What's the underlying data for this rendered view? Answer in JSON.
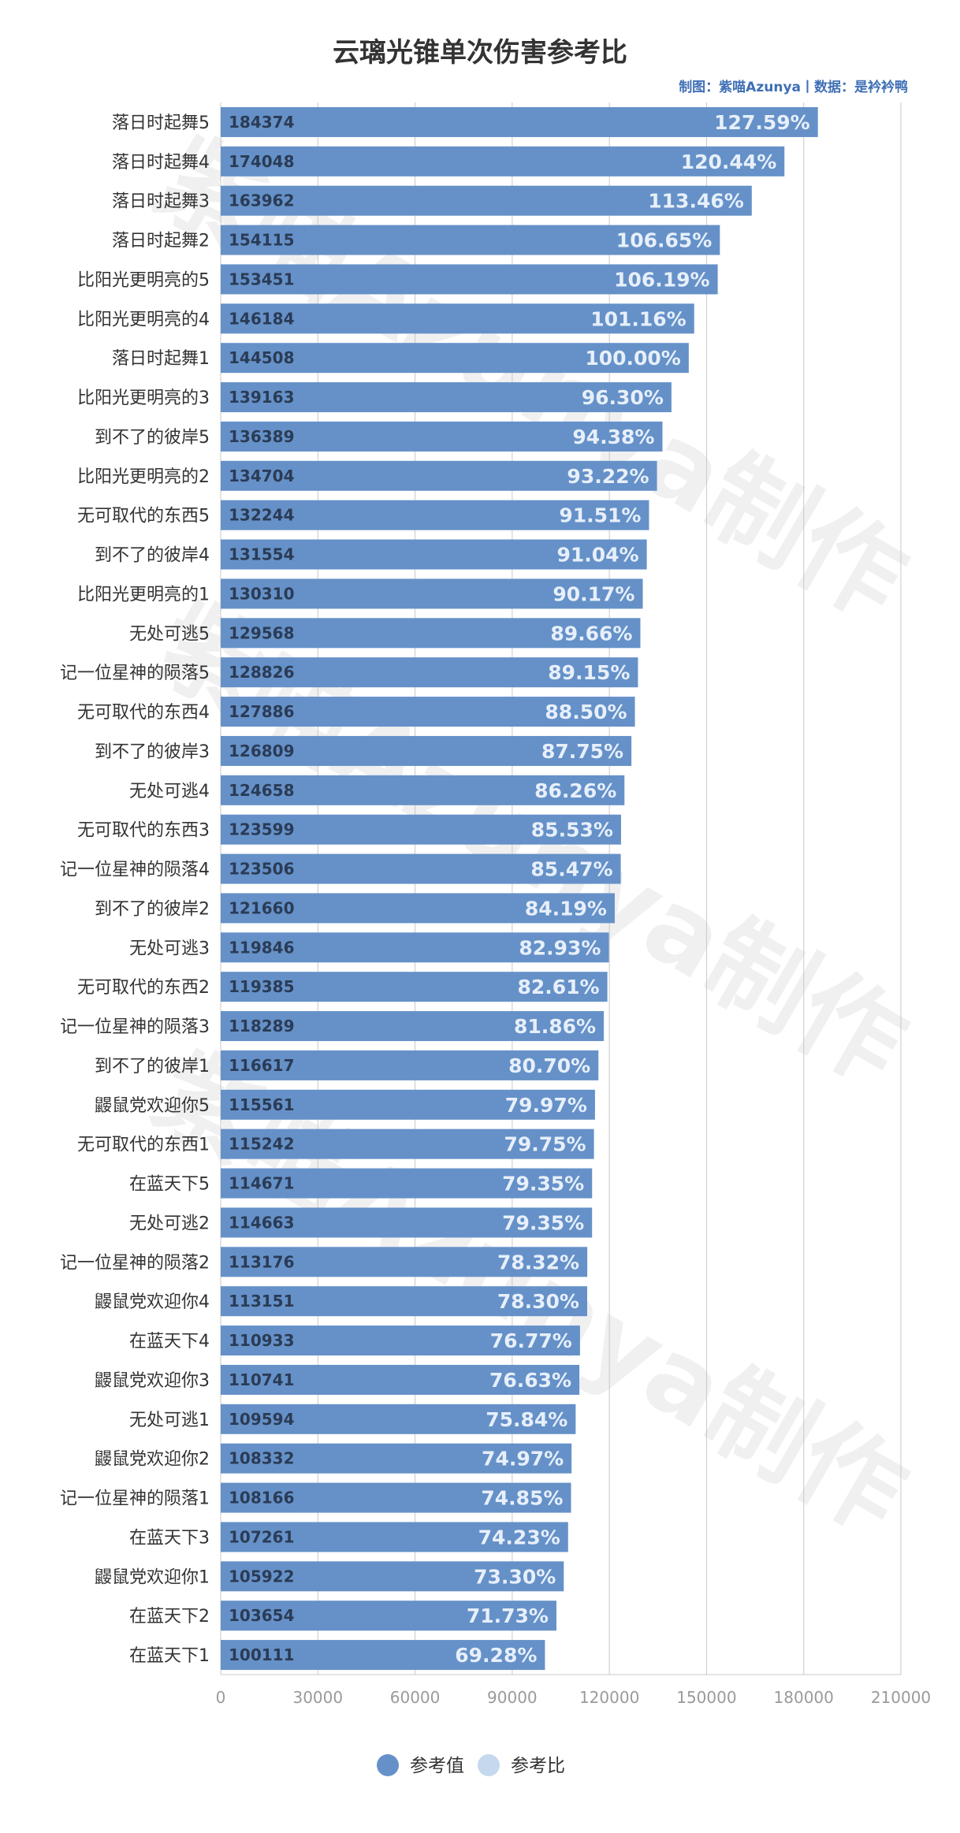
{
  "chart_data": {
    "type": "bar",
    "orientation": "horizontal",
    "title": "云璃光锥单次伤害参考比",
    "credit": "制图：紫喵Azunya丨数据：是衿衿鸭",
    "watermark": "紫喵Azunya制作",
    "xlim": [
      0,
      210000
    ],
    "x_ticks": [
      "0",
      "30000",
      "60000",
      "90000",
      "120000",
      "150000",
      "180000",
      "210000"
    ],
    "grid": true,
    "legend_position": "bottom",
    "colors": {
      "bar": "#6591c8",
      "legend_primary": "#6591c8",
      "legend_secondary": "#c5d8ee"
    },
    "series": [
      {
        "name": "参考值",
        "values": [
          184374,
          174048,
          163962,
          154115,
          153451,
          146184,
          144508,
          139163,
          136389,
          134704,
          132244,
          131554,
          130310,
          129568,
          128826,
          127886,
          126809,
          124658,
          123599,
          123506,
          121660,
          119846,
          119385,
          118289,
          116617,
          115561,
          115242,
          114671,
          114663,
          113176,
          113151,
          110933,
          110741,
          109594,
          108332,
          108166,
          107261,
          105922,
          103654,
          100111
        ]
      },
      {
        "name": "参考比",
        "values": [
          "127.59%",
          "120.44%",
          "113.46%",
          "106.65%",
          "106.19%",
          "101.16%",
          "100.00%",
          "96.30%",
          "94.38%",
          "93.22%",
          "91.51%",
          "91.04%",
          "90.17%",
          "89.66%",
          "89.15%",
          "88.50%",
          "87.75%",
          "86.26%",
          "85.53%",
          "85.47%",
          "84.19%",
          "82.93%",
          "82.61%",
          "81.86%",
          "80.70%",
          "79.97%",
          "79.75%",
          "79.35%",
          "79.35%",
          "78.32%",
          "78.30%",
          "76.77%",
          "76.63%",
          "75.84%",
          "74.97%",
          "74.85%",
          "74.23%",
          "73.30%",
          "71.73%",
          "69.28%"
        ]
      }
    ],
    "categories": [
      "落日时起舞5",
      "落日时起舞4",
      "落日时起舞3",
      "落日时起舞2",
      "比阳光更明亮的5",
      "比阳光更明亮的4",
      "落日时起舞1",
      "比阳光更明亮的3",
      "到不了的彼岸5",
      "比阳光更明亮的2",
      "无可取代的东西5",
      "到不了的彼岸4",
      "比阳光更明亮的1",
      "无处可逃5",
      "记一位星神的陨落5",
      "无可取代的东西4",
      "到不了的彼岸3",
      "无处可逃4",
      "无可取代的东西3",
      "记一位星神的陨落4",
      "到不了的彼岸2",
      "无处可逃3",
      "无可取代的东西2",
      "记一位星神的陨落3",
      "到不了的彼岸1",
      "鼹鼠党欢迎你5",
      "无可取代的东西1",
      "在蓝天下5",
      "无处可逃2",
      "记一位星神的陨落2",
      "鼹鼠党欢迎你4",
      "在蓝天下4",
      "鼹鼠党欢迎你3",
      "无处可逃1",
      "鼹鼠党欢迎你2",
      "记一位星神的陨落1",
      "在蓝天下3",
      "鼹鼠党欢迎你1",
      "在蓝天下2",
      "在蓝天下1"
    ]
  }
}
